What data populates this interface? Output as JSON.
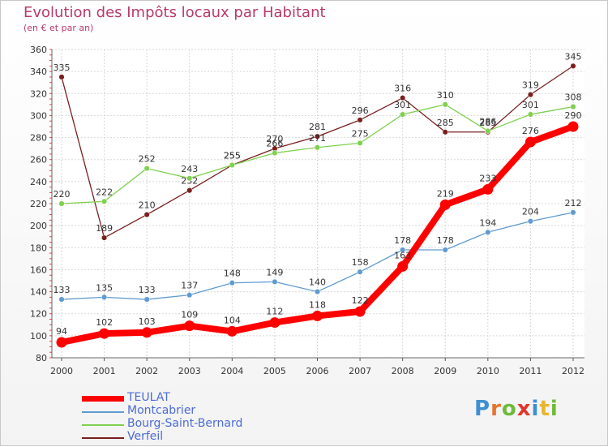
{
  "header": {
    "title": "Evolution des Impôts locaux par Habitant",
    "subtitle": "(en € et par an)"
  },
  "logo": {
    "text": "Proxiti",
    "letters": [
      "P",
      "r",
      "o",
      "x",
      "i",
      "t",
      "i"
    ],
    "colors": [
      "#3d8fd1",
      "#e8742c",
      "#6dbb3a",
      "#e2362a",
      "#3d8fd1",
      "#e8b52c",
      "#6dbb3a"
    ]
  },
  "chart_data": {
    "type": "line",
    "title": "Evolution des Impôts locaux par Habitant",
    "subtitle": "(en € et par an)",
    "xlabel": "",
    "ylabel": "",
    "x": [
      "2000",
      "2001",
      "2002",
      "2003",
      "2004",
      "2005",
      "2006",
      "2007",
      "2008",
      "2009",
      "2010",
      "2011",
      "2012"
    ],
    "ylim": [
      80,
      360
    ],
    "yticks": [
      80,
      100,
      120,
      140,
      160,
      180,
      200,
      220,
      240,
      260,
      280,
      300,
      320,
      340,
      360
    ],
    "grid": true,
    "legend_position": "bottom-left",
    "series": [
      {
        "name": "TEULAT",
        "color": "#ff0000",
        "values": [
          94,
          102,
          103,
          109,
          104,
          112,
          118,
          122,
          163,
          219,
          233,
          276,
          290
        ],
        "labels": [
          "94",
          "102",
          "103",
          "109",
          "104",
          "112",
          "118",
          "122",
          "163",
          "219",
          "233",
          "276",
          "290"
        ]
      },
      {
        "name": "Montcabrier",
        "color": "#5f9bd1",
        "values": [
          133,
          135,
          133,
          137,
          148,
          149,
          140,
          158,
          178,
          178,
          194,
          204,
          212
        ],
        "labels": [
          "133",
          "135",
          "133",
          "137",
          "148",
          "149",
          "140",
          "158",
          "178",
          "178",
          "194",
          "204",
          "212"
        ]
      },
      {
        "name": "Bourg-Saint-Bernard",
        "color": "#7fd04f",
        "values": [
          220,
          222,
          252,
          243,
          255,
          266,
          271,
          275,
          301,
          310,
          286,
          301,
          308
        ],
        "labels": [
          "220",
          "222",
          "252",
          "243",
          "255",
          "266",
          "271",
          "275",
          "301",
          "310",
          "286",
          "301",
          "308"
        ]
      },
      {
        "name": "Verfeil",
        "color": "#7b1f1f",
        "values": [
          335,
          189,
          210,
          232,
          255,
          270,
          281,
          296,
          316,
          285,
          285,
          319,
          345
        ],
        "labels": [
          "335",
          "189",
          "210",
          "232",
          "255",
          "270",
          "281",
          "296",
          "316",
          "285",
          "285",
          "319",
          "345"
        ]
      }
    ]
  }
}
